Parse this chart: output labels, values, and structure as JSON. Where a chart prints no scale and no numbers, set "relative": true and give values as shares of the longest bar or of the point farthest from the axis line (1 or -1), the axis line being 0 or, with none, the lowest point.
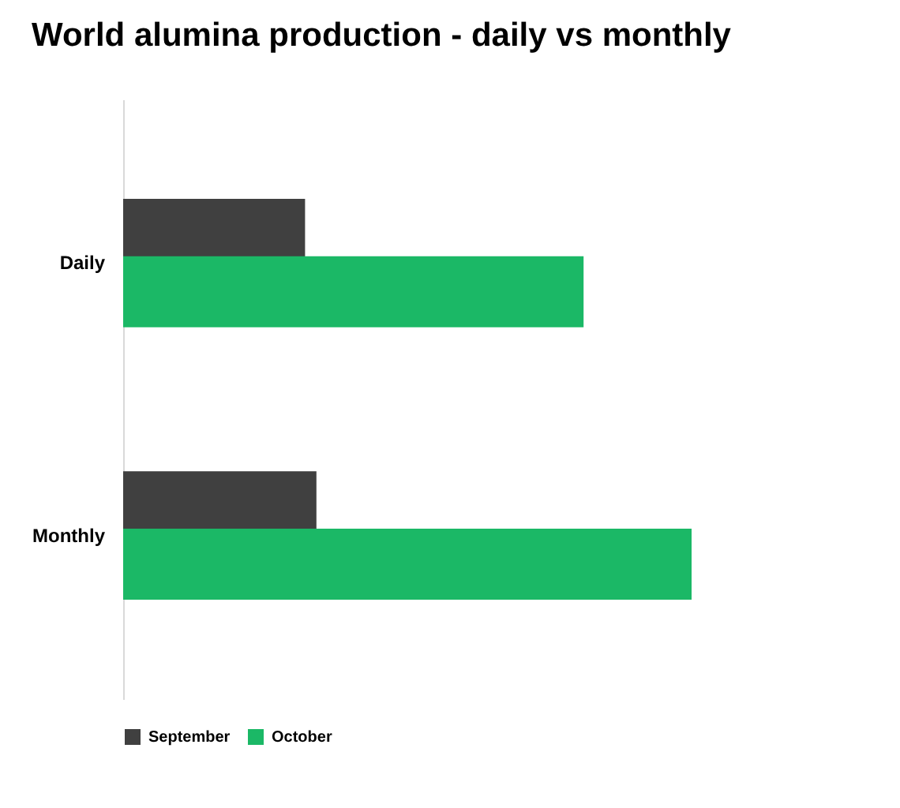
{
  "chart_data": {
    "type": "bar",
    "title": "World alumina production - daily vs monthly",
    "orientation": "horizontal",
    "relative": true,
    "categories": [
      "Daily",
      "Monthly"
    ],
    "legend": "bottom",
    "series": [
      {
        "name": "September",
        "color": "#404040",
        "values": [
          0.32,
          0.34
        ]
      },
      {
        "name": "October",
        "color": "#1bb866",
        "values": [
          0.81,
          1
        ]
      }
    ]
  }
}
